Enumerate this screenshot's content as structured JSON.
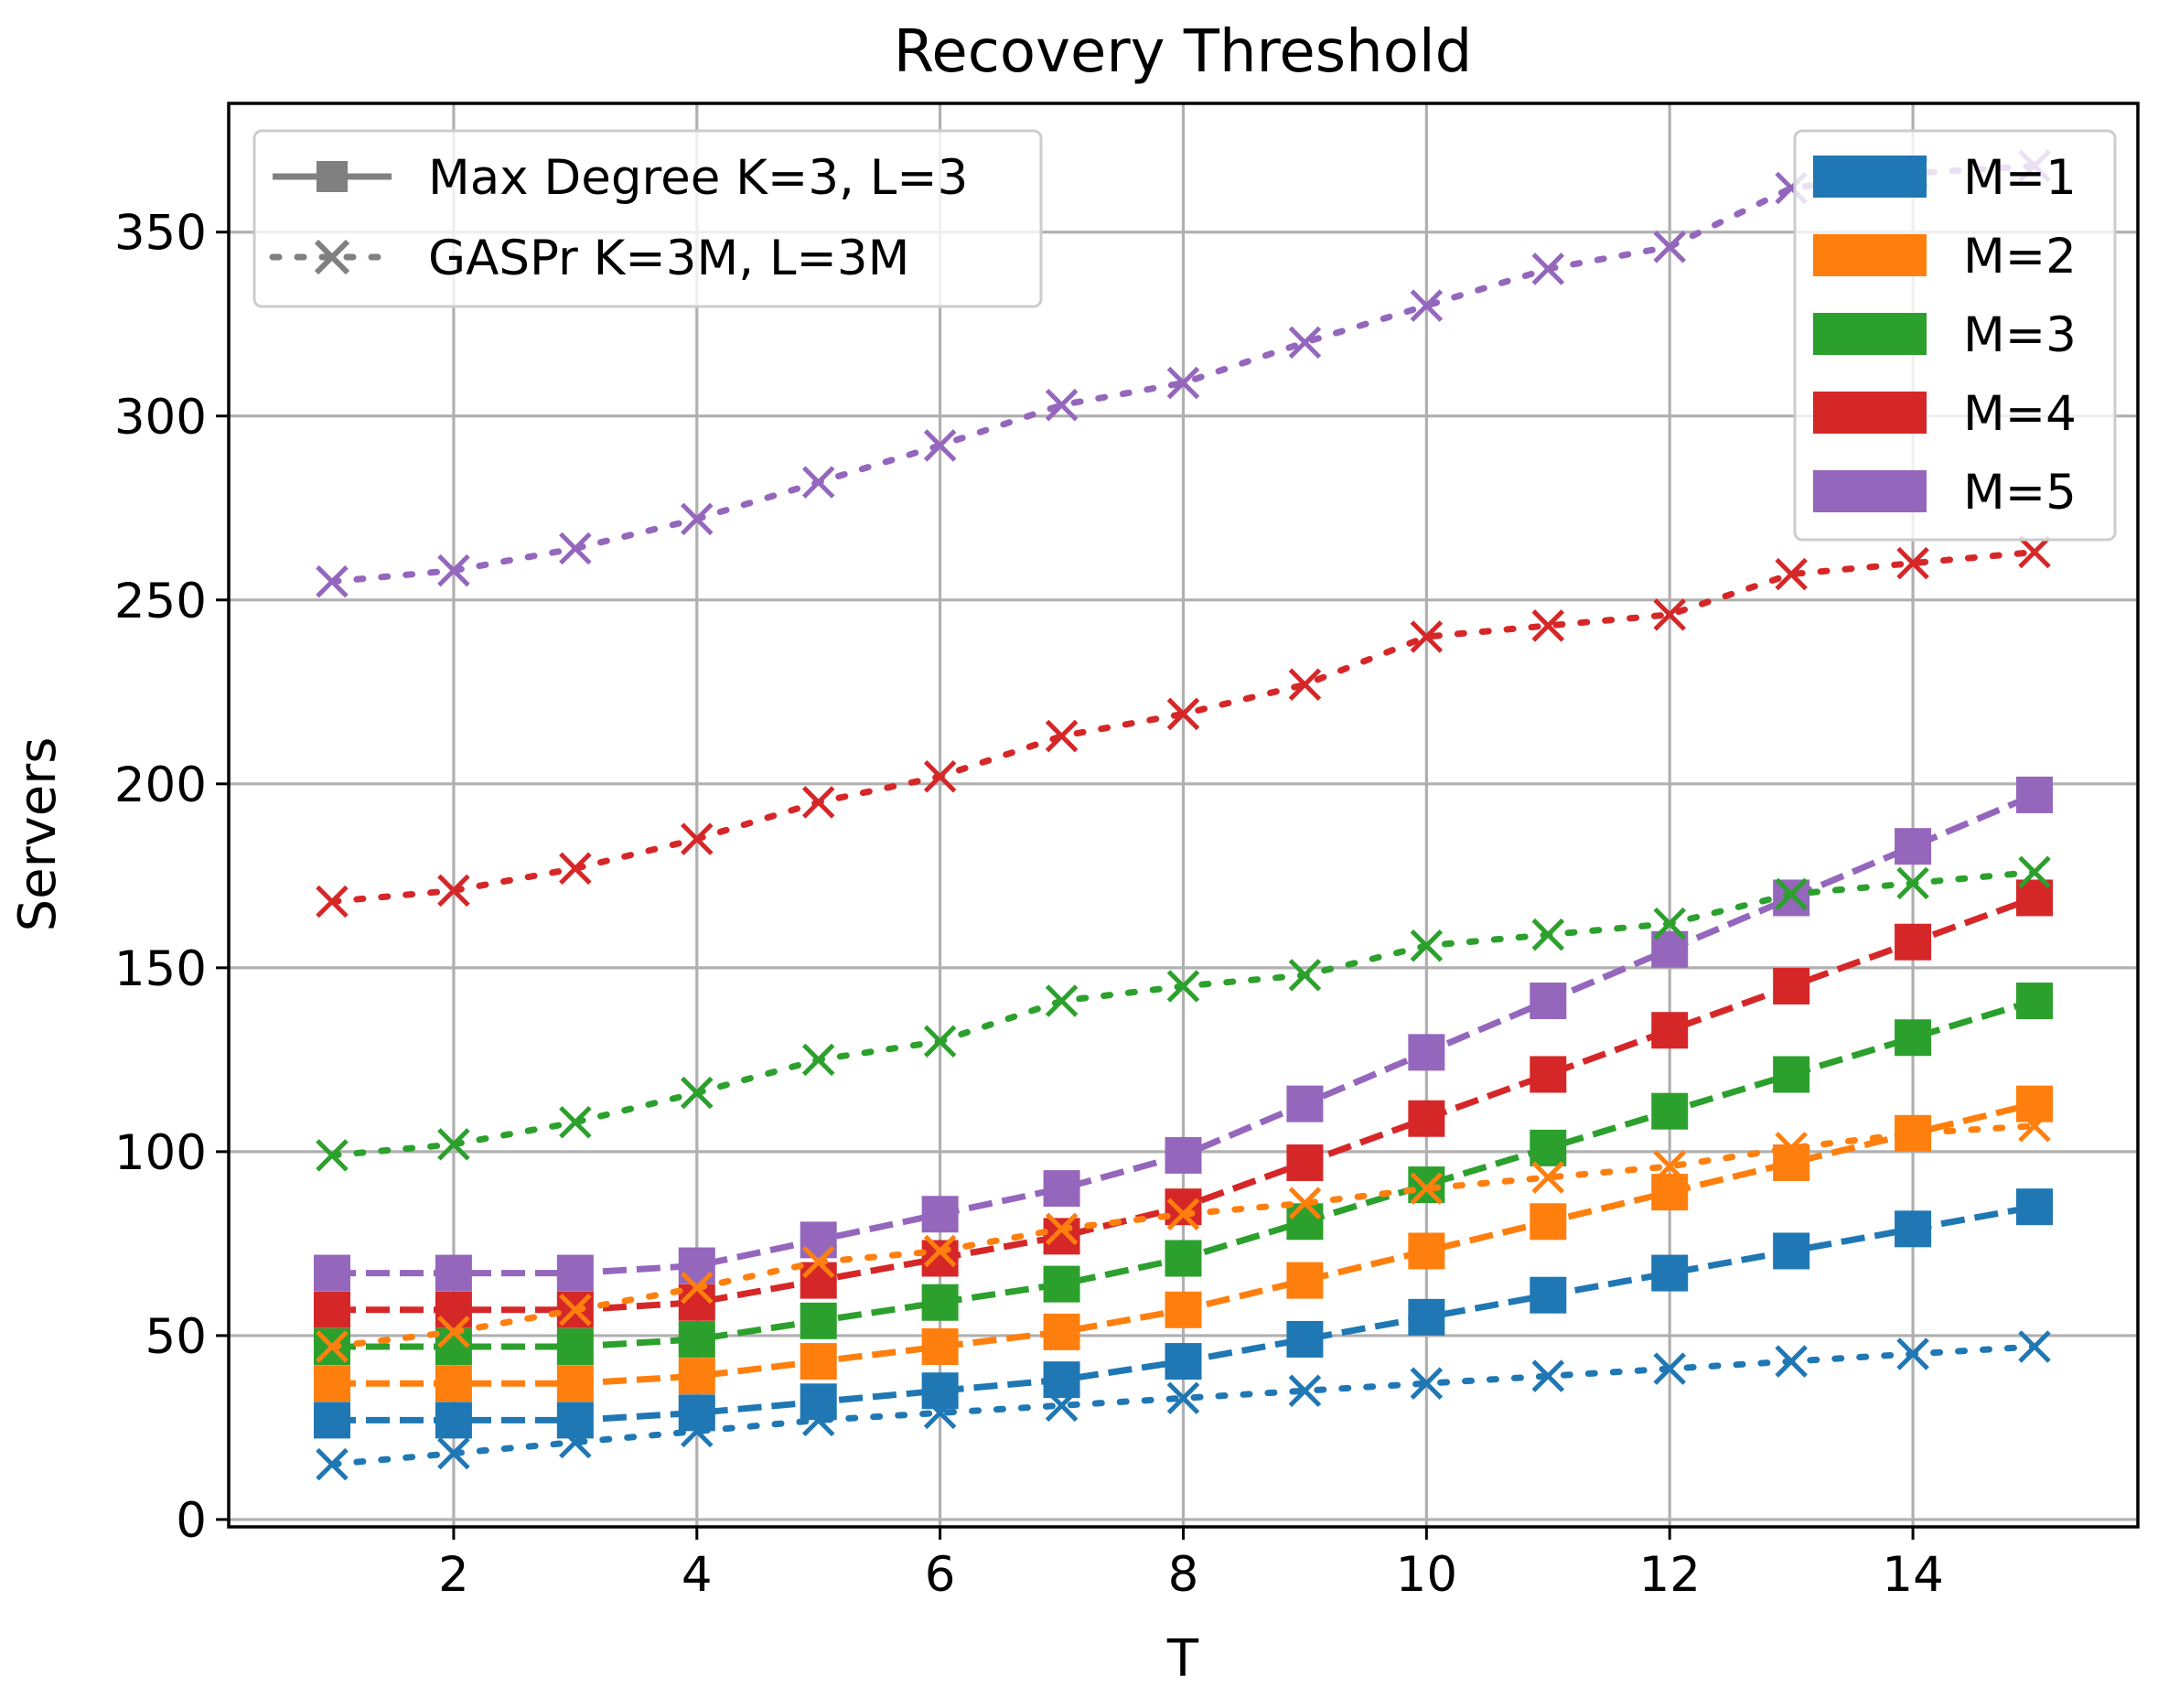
{
  "chart_data": {
    "type": "line",
    "title": "Recovery Threshold",
    "xlabel": "T",
    "ylabel": "Servers",
    "x": [
      1,
      2,
      3,
      4,
      5,
      6,
      7,
      8,
      9,
      10,
      11,
      12,
      13,
      14,
      15
    ],
    "xlim": [
      0.15,
      15.85
    ],
    "ylim": [
      -2,
      385
    ],
    "xticks": [
      2,
      4,
      6,
      8,
      10,
      12,
      14
    ],
    "yticks": [
      0,
      50,
      100,
      150,
      200,
      250,
      300,
      350
    ],
    "grid": true,
    "series": [
      {
        "name": "M=1",
        "method": "Max Degree K=3, L=3",
        "color": "#1f77b4",
        "marker": "square",
        "values": [
          27,
          27,
          27,
          29,
          32,
          35,
          38,
          43,
          49,
          55,
          61,
          67,
          73,
          79,
          85
        ]
      },
      {
        "name": "M=2",
        "method": "Max Degree K=3, L=3",
        "color": "#ff7f0e",
        "marker": "square",
        "values": [
          37,
          37,
          37,
          39,
          43,
          47,
          51,
          57,
          65,
          73,
          81,
          89,
          97,
          105,
          113
        ]
      },
      {
        "name": "M=3",
        "method": "Max Degree K=3, L=3",
        "color": "#2ca02c",
        "marker": "square",
        "values": [
          47,
          47,
          47,
          49,
          54,
          59,
          64,
          71,
          81,
          91,
          101,
          111,
          121,
          131,
          141
        ]
      },
      {
        "name": "M=4",
        "method": "Max Degree K=3, L=3",
        "color": "#d62728",
        "marker": "square",
        "values": [
          57,
          57,
          57,
          59,
          65,
          71,
          77,
          85,
          97,
          109,
          121,
          133,
          145,
          157,
          169
        ]
      },
      {
        "name": "M=5",
        "method": "Max Degree K=3, L=3",
        "color": "#9467bd",
        "marker": "square",
        "values": [
          67,
          67,
          67,
          69,
          76,
          83,
          90,
          99,
          113,
          127,
          141,
          155,
          169,
          183,
          197
        ]
      },
      {
        "name": "M=1",
        "method": "GASPr K=3M, L=3M",
        "color": "#1f77b4",
        "marker": "x",
        "values": [
          15,
          18,
          21,
          24,
          27,
          29,
          31,
          33,
          35,
          37,
          39,
          41,
          43,
          45,
          47
        ]
      },
      {
        "name": "M=2",
        "method": "GASPr K=3M, L=3M",
        "color": "#ff7f0e",
        "marker": "x",
        "values": [
          47,
          51,
          57,
          63,
          70,
          73,
          79,
          83,
          86,
          90,
          93,
          96,
          101,
          105,
          107
        ]
      },
      {
        "name": "M=3",
        "method": "GASPr K=3M, L=3M",
        "color": "#2ca02c",
        "marker": "x",
        "values": [
          99,
          102,
          108,
          116,
          125,
          130,
          141,
          145,
          148,
          156,
          159,
          162,
          170,
          173,
          176
        ]
      },
      {
        "name": "M=4",
        "method": "GASPr K=3M, L=3M",
        "color": "#d62728",
        "marker": "x",
        "values": [
          168,
          171,
          177,
          185,
          195,
          202,
          213,
          219,
          227,
          240,
          243,
          246,
          257,
          260,
          263
        ]
      },
      {
        "name": "M=5",
        "method": "GASPr K=3M, L=3M",
        "color": "#9467bd",
        "marker": "x",
        "values": [
          255,
          258,
          264,
          272,
          282,
          292,
          303,
          309,
          320,
          330,
          340,
          346,
          362,
          366,
          368
        ]
      }
    ],
    "legends": {
      "method": {
        "position": "upper left",
        "entries": [
          {
            "label": "Max Degree K=3, L=3",
            "line": "solid",
            "marker": "square",
            "color": "#808080"
          },
          {
            "label": "GASPr K=3M, L=3M",
            "line": "dotted",
            "marker": "x",
            "color": "#808080"
          }
        ]
      },
      "color": {
        "position": "upper right",
        "entries": [
          {
            "label": "M=1",
            "color": "#1f77b4"
          },
          {
            "label": "M=2",
            "color": "#ff7f0e"
          },
          {
            "label": "M=3",
            "color": "#2ca02c"
          },
          {
            "label": "M=4",
            "color": "#d62728"
          },
          {
            "label": "M=5",
            "color": "#9467bd"
          }
        ]
      }
    }
  }
}
